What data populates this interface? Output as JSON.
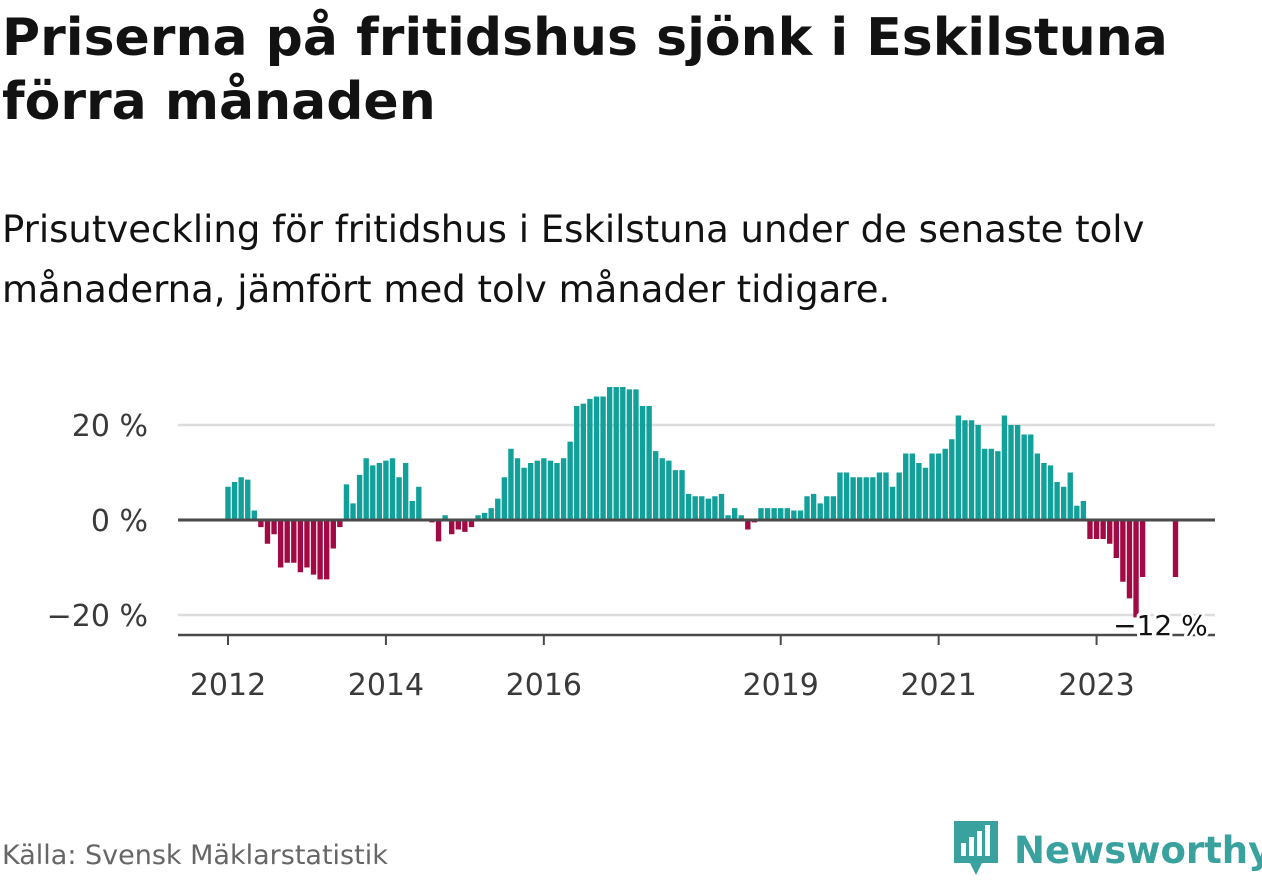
{
  "title": "Priserna på fritidshus sjönk i Eskilstuna förra månaden",
  "subtitle": "Prisutveckling för fritidshus i Eskilstuna under de senaste tolv månaderna, jämfört med tolv månader tidigare.",
  "source": "Källa: Svensk Mäklarstatistik",
  "brand": {
    "name": "Newsworthy",
    "icon": "newsworthy-logo-icon",
    "color": "#3aa29e"
  },
  "colors": {
    "positive": "#11a19a",
    "negative": "#a10a44",
    "zero_line": "#4a4a4a",
    "grid": "#dddddd"
  },
  "chart_data": {
    "type": "bar",
    "x_start": "2012-01",
    "y_unit": "%",
    "ylim": [
      -22,
      30
    ],
    "yticks": [
      {
        "value": 20,
        "label": "20 %"
      },
      {
        "value": 0,
        "label": "0 %"
      },
      {
        "value": -20,
        "label": "−20 %"
      }
    ],
    "xticks": [
      {
        "month_index": 0,
        "label": "2012"
      },
      {
        "month_index": 24,
        "label": "2014"
      },
      {
        "month_index": 48,
        "label": "2016"
      },
      {
        "month_index": 84,
        "label": "2019"
      },
      {
        "month_index": 108,
        "label": "2021"
      },
      {
        "month_index": 132,
        "label": "2023"
      }
    ],
    "grid": true,
    "annotation": {
      "label": "−12 %",
      "month_index": 141,
      "value": -12
    },
    "values": [
      7,
      8,
      9,
      8.5,
      2,
      -1.5,
      -5,
      -3,
      -10,
      -9,
      -9,
      -11,
      -10,
      -11.5,
      -12.5,
      -12.5,
      -6,
      -1.5,
      7.5,
      3.5,
      9.5,
      13,
      11.5,
      12,
      12.5,
      13,
      9,
      12,
      4,
      7,
      0,
      -0.5,
      -4.5,
      1,
      -3,
      -2,
      -2.5,
      -1.5,
      1,
      1.5,
      2.5,
      4.5,
      9,
      15,
      13,
      11,
      12,
      12.5,
      13,
      12.5,
      12,
      13,
      16.5,
      24,
      24.5,
      25.5,
      26,
      26,
      28,
      28,
      28,
      27.5,
      27.5,
      24,
      24,
      14.5,
      13,
      12.5,
      10.5,
      10.5,
      5.5,
      5,
      5,
      4.5,
      5,
      5.5,
      1,
      2.5,
      1,
      -2,
      -0.5,
      2.5,
      2.5,
      2.5,
      2.5,
      2.5,
      2,
      2,
      5,
      5.5,
      3.5,
      5,
      5,
      10,
      10,
      9,
      9,
      9,
      9,
      10,
      10,
      7,
      10,
      14,
      14,
      12,
      11,
      14,
      14,
      15,
      17,
      22,
      21,
      21,
      20,
      15,
      15,
      14.5,
      22,
      20,
      20,
      18,
      18,
      14,
      12,
      11.5,
      8,
      7,
      10,
      3,
      4,
      -4,
      -4,
      -4,
      -5,
      -8,
      -13,
      -16.5,
      -20.5,
      -12,
      null,
      null,
      null,
      null,
      -12
    ]
  }
}
